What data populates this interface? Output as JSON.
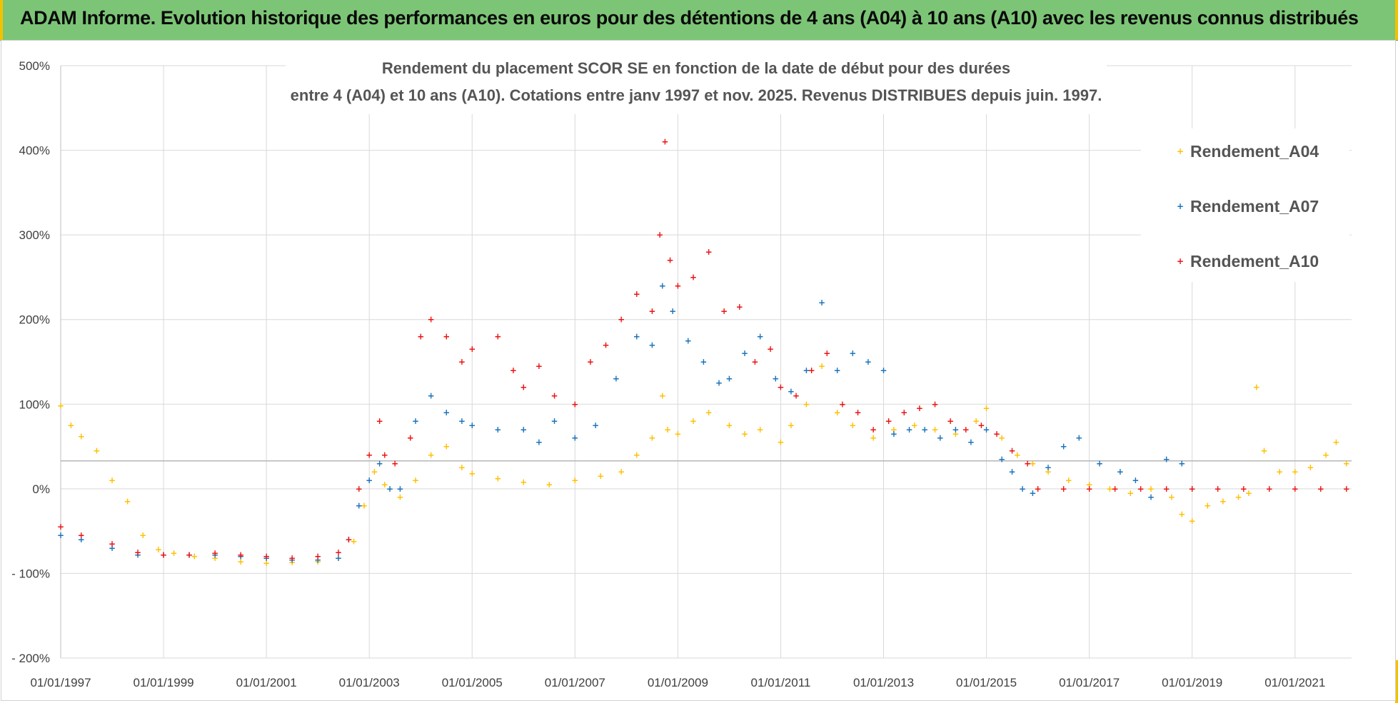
{
  "header": {
    "banner_title": "ADAM Informe. Evolution historique des performances en euros pour des détentions de 4 ans (A04) à 10 ans (A10) avec les revenus connus distribués"
  },
  "colors": {
    "banner_bg": "#7cc576",
    "corner_accent": "#f2c200"
  },
  "chart_data": {
    "type": "scatter",
    "title_lines": [
      "Rendement du placement SCOR SE en fonction de la date de début pour des durées",
      "entre 4 (A04) et 10 ans (A10).  Cotations entre janv 1997 et nov. 2025. Revenus DISTRIBUES depuis juin. 1997."
    ],
    "xlabel": "",
    "ylabel": "",
    "xlim": [
      1997.0,
      2022.1
    ],
    "ylim": [
      -200,
      500
    ],
    "grid": true,
    "legend_position": "top-right",
    "x_ticks": [
      1997,
      1999,
      2001,
      2003,
      2005,
      2007,
      2009,
      2011,
      2013,
      2015,
      2017,
      2019,
      2021
    ],
    "x_tick_labels": [
      "01/01/1997",
      "01/01/1999",
      "01/01/2001",
      "01/01/2003",
      "01/01/2005",
      "01/01/2007",
      "01/01/2009",
      "01/01/2011",
      "01/01/2013",
      "01/01/2015",
      "01/01/2017",
      "01/01/2019",
      "01/01/2021"
    ],
    "y_ticks": [
      -200,
      -100,
      0,
      100,
      200,
      300,
      400,
      500
    ],
    "y_tick_labels": [
      "- 200%",
      "- 100%",
      "0%",
      "100%",
      "200%",
      "300%",
      "400%",
      "500%"
    ],
    "reference_line_y": 33,
    "series": [
      {
        "name": "Rendement_A04",
        "color": "#ffc000",
        "marker": "+",
        "x": [
          1997.0,
          1997.2,
          1997.4,
          1997.7,
          1998.0,
          1998.3,
          1998.6,
          1998.9,
          1999.2,
          1999.6,
          2000.0,
          2000.5,
          2001.0,
          2001.5,
          2002.0,
          2002.4,
          2002.7,
          2002.9,
          2003.1,
          2003.3,
          2003.6,
          2003.9,
          2004.2,
          2004.5,
          2004.8,
          2005.0,
          2005.5,
          2006.0,
          2006.5,
          2007.0,
          2007.5,
          2007.9,
          2008.2,
          2008.5,
          2008.7,
          2008.8,
          2009.0,
          2009.3,
          2009.6,
          2010.0,
          2010.3,
          2010.6,
          2011.0,
          2011.2,
          2011.5,
          2011.8,
          2012.1,
          2012.4,
          2012.8,
          2013.2,
          2013.6,
          2014.0,
          2014.4,
          2014.8,
          2015.0,
          2015.3,
          2015.6,
          2015.9,
          2016.2,
          2016.6,
          2017.0,
          2017.4,
          2017.8,
          2018.2,
          2018.6,
          2018.8,
          2019.0,
          2019.3,
          2019.6,
          2019.9,
          2020.1,
          2020.25,
          2020.4,
          2020.7,
          2021.0,
          2021.3,
          2021.6,
          2021.8,
          2022.0
        ],
        "y": [
          98,
          75,
          62,
          45,
          10,
          -15,
          -55,
          -72,
          -76,
          -80,
          -82,
          -86,
          -88,
          -87,
          -86,
          -82,
          -62,
          -20,
          20,
          5,
          -10,
          10,
          40,
          50,
          25,
          18,
          12,
          8,
          5,
          10,
          15,
          20,
          40,
          60,
          110,
          70,
          65,
          80,
          90,
          75,
          65,
          70,
          55,
          75,
          100,
          145,
          90,
          75,
          60,
          70,
          75,
          70,
          65,
          80,
          95,
          60,
          40,
          30,
          20,
          10,
          5,
          0,
          -5,
          0,
          -10,
          -30,
          -38,
          -20,
          -15,
          -10,
          -5,
          120,
          45,
          20,
          20,
          25,
          40,
          55,
          30
        ]
      },
      {
        "name": "Rendement_A07",
        "color": "#1a73bb",
        "marker": "+",
        "x": [
          1997.0,
          1997.4,
          1998.0,
          1998.5,
          1999.0,
          1999.5,
          2000.0,
          2000.5,
          2001.0,
          2001.5,
          2002.0,
          2002.4,
          2002.6,
          2002.8,
          2003.0,
          2003.2,
          2003.4,
          2003.6,
          2003.9,
          2004.2,
          2004.5,
          2004.8,
          2005.0,
          2005.5,
          2006.0,
          2006.3,
          2006.6,
          2007.0,
          2007.4,
          2007.8,
          2008.2,
          2008.5,
          2008.7,
          2008.9,
          2009.2,
          2009.5,
          2009.8,
          2010.0,
          2010.3,
          2010.6,
          2010.9,
          2011.2,
          2011.5,
          2011.8,
          2012.1,
          2012.4,
          2012.7,
          2013.0,
          2013.2,
          2013.5,
          2013.8,
          2014.1,
          2014.4,
          2014.7,
          2015.0,
          2015.3,
          2015.5,
          2015.7,
          2015.9,
          2016.2,
          2016.5,
          2016.8,
          2017.2,
          2017.6,
          2017.9,
          2018.2,
          2018.5,
          2018.8,
          2019.0
        ],
        "y": [
          -55,
          -60,
          -70,
          -78,
          -78,
          -78,
          -78,
          -80,
          -82,
          -84,
          -84,
          -82,
          -60,
          -20,
          10,
          30,
          0,
          0,
          80,
          110,
          90,
          80,
          75,
          70,
          70,
          55,
          80,
          60,
          75,
          130,
          180,
          170,
          240,
          210,
          175,
          150,
          125,
          130,
          160,
          180,
          130,
          115,
          140,
          220,
          140,
          160,
          150,
          140,
          65,
          70,
          70,
          60,
          70,
          55,
          70,
          35,
          20,
          0,
          -5,
          25,
          50,
          60,
          30,
          20,
          10,
          -10,
          35,
          30,
          0
        ]
      },
      {
        "name": "Rendement_A10",
        "color": "#ee1111",
        "marker": "+",
        "x": [
          1997.0,
          1997.4,
          1998.0,
          1998.5,
          1999.0,
          1999.5,
          2000.0,
          2000.5,
          2001.0,
          2001.5,
          2002.0,
          2002.4,
          2002.6,
          2002.8,
          2003.0,
          2003.2,
          2003.3,
          2003.5,
          2003.8,
          2004.0,
          2004.2,
          2004.5,
          2004.8,
          2005.0,
          2005.5,
          2005.8,
          2006.0,
          2006.3,
          2006.6,
          2007.0,
          2007.3,
          2007.6,
          2007.9,
          2008.2,
          2008.5,
          2008.65,
          2008.75,
          2008.85,
          2009.0,
          2009.3,
          2009.6,
          2009.9,
          2010.2,
          2010.5,
          2010.8,
          2011.0,
          2011.3,
          2011.6,
          2011.9,
          2012.2,
          2012.5,
          2012.8,
          2013.1,
          2013.4,
          2013.7,
          2014.0,
          2014.3,
          2014.6,
          2014.9,
          2015.2,
          2015.5,
          2015.8,
          2016.0,
          2016.5,
          2017.0,
          2017.5,
          2018.0,
          2018.5,
          2019.0,
          2019.5,
          2020.0,
          2020.5,
          2021.0,
          2021.5,
          2022.0
        ],
        "y": [
          -45,
          -55,
          -65,
          -75,
          -78,
          -78,
          -76,
          -78,
          -80,
          -82,
          -80,
          -75,
          -60,
          0,
          40,
          80,
          40,
          30,
          60,
          180,
          200,
          180,
          150,
          165,
          180,
          140,
          120,
          145,
          110,
          100,
          150,
          170,
          200,
          230,
          210,
          300,
          410,
          270,
          240,
          250,
          280,
          210,
          215,
          150,
          165,
          120,
          110,
          140,
          160,
          100,
          90,
          70,
          80,
          90,
          95,
          100,
          80,
          70,
          75,
          65,
          45,
          30,
          0,
          0,
          0,
          0,
          0,
          0,
          0,
          0,
          0,
          0,
          0,
          0,
          0
        ]
      }
    ]
  }
}
